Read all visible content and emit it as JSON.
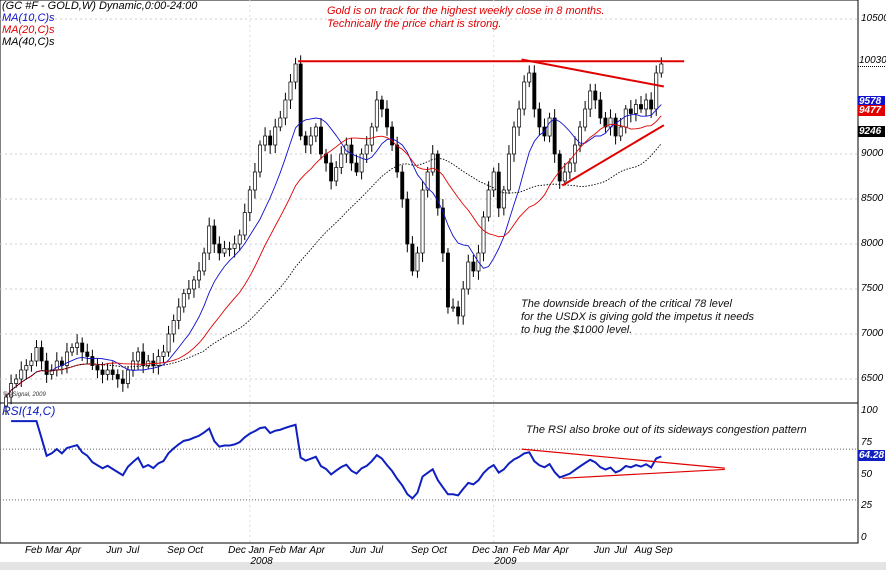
{
  "header": {
    "symbol": "(GC #F - GOLD,W) Dynamic,0:00-24:00",
    "ma10": "MA(10,C)s",
    "ma20": "MA(20,C)s",
    "ma40": "MA(40,C)s",
    "rsi_label": "RSI(14,C)",
    "copyright": "© eSignal, 2009"
  },
  "annotations": {
    "top_line1": "Gold is on track for the highest weekly close in 8 months.",
    "top_line2": "Technically the price chart is strong.",
    "mid_line1": "The downside breach of the critical 78 level",
    "mid_line2": "for the USDX is giving gold the impetus it needs",
    "mid_line3": "to hug the $1000 level.",
    "rsi_note": "The RSI also broke out of its sideways congestion pattern"
  },
  "colors": {
    "ma10": "#1010d0",
    "ma20": "#e00000",
    "ma40": "#000000",
    "rsi": "#1020c0",
    "trendline": "#e00000",
    "candle_up": "#ffffff",
    "candle_down": "#000000"
  },
  "chart_data": {
    "type": "candlestick",
    "interval": "weekly",
    "start": "2007-01",
    "close": [
      6300,
      6450,
      6500,
      6600,
      6650,
      6700,
      6850,
      6700,
      6550,
      6600,
      6700,
      6650,
      6800,
      6850,
      6900,
      6800,
      6750,
      6650,
      6600,
      6550,
      6600,
      6550,
      6500,
      6450,
      6600,
      6700,
      6800,
      6650,
      6700,
      6650,
      6750,
      6800,
      7000,
      7150,
      7300,
      7450,
      7500,
      7600,
      7700,
      7900,
      8200,
      8000,
      7900,
      7950,
      7950,
      8000,
      8100,
      8350,
      8600,
      8800,
      9100,
      9200,
      9100,
      9300,
      9400,
      9600,
      9800,
      10000,
      9200,
      9100,
      9200,
      9300,
      9000,
      8900,
      8700,
      8850,
      9000,
      9100,
      8900,
      8800,
      9000,
      9100,
      9300,
      9600,
      9500,
      9300,
      9100,
      8800,
      8500,
      8000,
      7700,
      7900,
      8600,
      8800,
      9000,
      8400,
      7900,
      7300,
      7300,
      7200,
      7500,
      7800,
      7700,
      7900,
      8300,
      8600,
      8800,
      8400,
      8600,
      9000,
      9300,
      9500,
      9800,
      9900,
      9500,
      9300,
      9200,
      9400,
      9000,
      8700,
      8800,
      8900,
      9100,
      9300,
      9500,
      9700,
      9600,
      9400,
      9300,
      9400,
      9200,
      9300,
      9500,
      9450,
      9550,
      9500,
      9600,
      9500,
      9900,
      10000
    ],
    "price_axis": {
      "ticks": [
        10500,
        9000,
        8500,
        8000,
        7500,
        7000,
        6500
      ],
      "range": [
        6300,
        10800
      ],
      "markers": [
        {
          "label": "10030",
          "value": 10030,
          "color": "none"
        },
        {
          "label": "9578",
          "value": 9578,
          "color": "#1010d0"
        },
        {
          "label": "9477",
          "value": 9477,
          "color": "#e00000"
        },
        {
          "label": "9246",
          "value": 9246,
          "color": "#000000"
        }
      ]
    },
    "rsi_axis": {
      "ticks": [
        100,
        75,
        50,
        25,
        0
      ],
      "range": [
        0,
        100
      ],
      "current": "64.28",
      "guides": [
        70,
        30
      ]
    },
    "x_labels": [
      {
        "label": "Feb",
        "date": "2007-02"
      },
      {
        "label": "Mar",
        "date": "2007-03"
      },
      {
        "label": "Apr",
        "date": "2007-04"
      },
      {
        "label": "Jun",
        "date": "2007-06"
      },
      {
        "label": "Jul",
        "date": "2007-07"
      },
      {
        "label": "Sep",
        "date": "2007-09"
      },
      {
        "label": "Oct",
        "date": "2007-10"
      },
      {
        "label": "Dec",
        "date": "2007-12"
      },
      {
        "label": "Jan",
        "date": "2008-01"
      },
      {
        "label": "Feb",
        "date": "2008-02"
      },
      {
        "label": "Mar",
        "date": "2008-03"
      },
      {
        "label": "Apr",
        "date": "2008-04"
      },
      {
        "label": "Jun",
        "date": "2008-06"
      },
      {
        "label": "Jul",
        "date": "2008-07"
      },
      {
        "label": "Sep",
        "date": "2008-09"
      },
      {
        "label": "Oct",
        "date": "2008-10"
      },
      {
        "label": "Dec",
        "date": "2008-12"
      },
      {
        "label": "Jan",
        "date": "2009-01"
      },
      {
        "label": "Feb",
        "date": "2009-02"
      },
      {
        "label": "Mar",
        "date": "2009-03"
      },
      {
        "label": "Apr",
        "date": "2009-04"
      },
      {
        "label": "Jun",
        "date": "2009-06"
      },
      {
        "label": "Jul",
        "date": "2009-07"
      },
      {
        "label": "Aug",
        "date": "2009-08"
      },
      {
        "label": "Sep",
        "date": "2009-09"
      }
    ],
    "year_labels": [
      {
        "label": "2008",
        "date": "2008-01"
      },
      {
        "label": "2009",
        "date": "2009-01"
      }
    ],
    "trendlines": [
      {
        "panel": "price",
        "from": {
          "date": "2008-03",
          "value": 10030
        },
        "to": {
          "date": "2009-10",
          "value": 10030
        }
      },
      {
        "panel": "price",
        "from": {
          "date": "2009-02",
          "value": 10050
        },
        "to": {
          "date": "2009-09",
          "value": 9750
        }
      },
      {
        "panel": "price",
        "from": {
          "date": "2009-04",
          "value": 8650
        },
        "to": {
          "date": "2009-09",
          "value": 9320
        }
      },
      {
        "panel": "rsi",
        "from": {
          "date": "2009-02",
          "value": 70
        },
        "to": {
          "date": "2009-12",
          "value": 55
        }
      },
      {
        "panel": "rsi",
        "from": {
          "date": "2009-04",
          "value": 47
        },
        "to": {
          "date": "2009-12",
          "value": 54
        }
      }
    ]
  }
}
